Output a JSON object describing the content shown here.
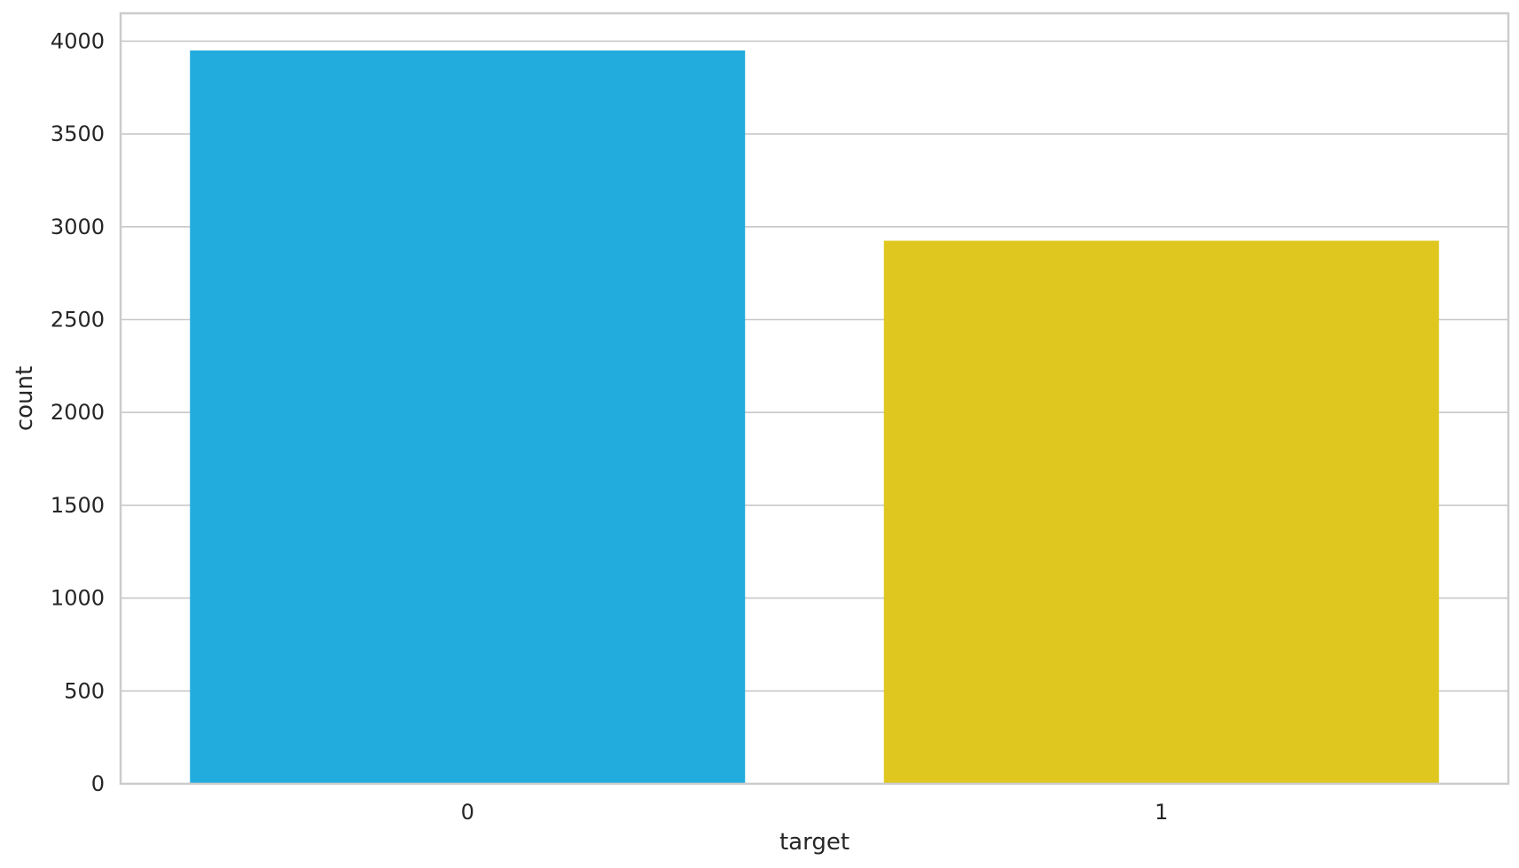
{
  "chart_data": {
    "type": "bar",
    "title": "",
    "xlabel": "target",
    "ylabel": "count",
    "categories": [
      "0",
      "1"
    ],
    "values": [
      3950,
      2925
    ],
    "ylim": [
      0,
      4150
    ],
    "yticks": [
      0,
      500,
      1000,
      1500,
      2000,
      2500,
      3000,
      3500,
      4000
    ],
    "grid": true,
    "legend": "none",
    "colors": [
      "#22ACDE",
      "#DFC71F"
    ],
    "grid_color": "#C8C8C8",
    "spine_color": "#CCCCCC",
    "background": "#FFFFFF"
  }
}
